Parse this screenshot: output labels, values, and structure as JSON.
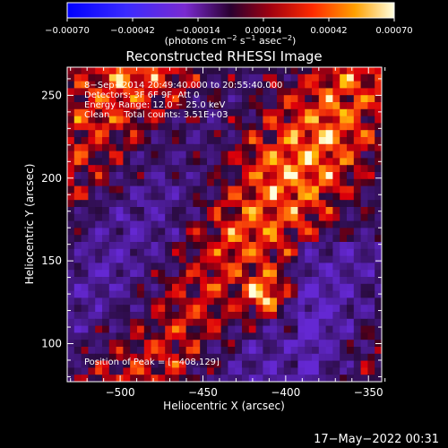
{
  "colorbar": {
    "ticks": [
      "−0.00070",
      "−0.00042",
      "−0.00014",
      "0.00014",
      "0.00042",
      "0.00070"
    ],
    "unit_text": "(photons cm",
    "unit_exp1": "−2",
    "unit_mid1": " s",
    "unit_exp2": "−1",
    "unit_mid2": " asec",
    "unit_exp3": "−2",
    "unit_end": ")",
    "min": -0.0007,
    "max": 0.0007
  },
  "plot": {
    "title": "Reconstructed RHESSI Image",
    "xlabel": "Heliocentric X (arcsec)",
    "ylabel": "Heliocentric Y (arcsec)",
    "xticks": [
      "−500",
      "−450",
      "−400",
      "−350"
    ],
    "yticks": [
      "100",
      "150",
      "200",
      "250"
    ],
    "info": [
      "8−Sep−2014 20:49:40.000 to 20:55:40.000",
      "Detectors: 3F 6F 9F, Att 0",
      "Energy Range: 12.0 − 25.0 keV",
      "Clean     Total counts: 3.51E+03"
    ],
    "peak_text": "Position of Peak = [−408,129]",
    "xlim": [
      -532,
      -342
    ],
    "ylim": [
      77,
      267
    ],
    "peak": [
      -408,
      129
    ]
  },
  "footer": {
    "date": "17−May−2022 00:31"
  }
}
